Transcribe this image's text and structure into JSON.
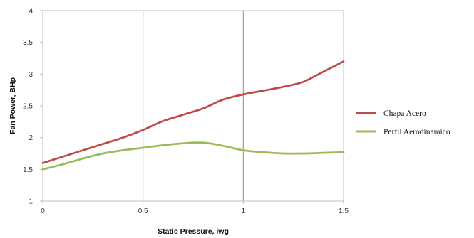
{
  "chart_data": {
    "type": "line",
    "xlabel": "Static Pressure, iwg",
    "ylabel": "Fan Power, BHp",
    "xlim": [
      0,
      1.5
    ],
    "ylim": [
      1,
      4
    ],
    "x_ticks": [
      "0",
      "0.5",
      "1",
      "1.5"
    ],
    "y_ticks": [
      "1",
      "1.5",
      "2",
      "2.5",
      "3",
      "3.5",
      "4"
    ],
    "grid": "vertical",
    "legend_position": "right",
    "series": [
      {
        "name": "Chapa Acero",
        "color": "#be4b48",
        "points": [
          [
            0,
            1.6
          ],
          [
            0.1,
            1.7
          ],
          [
            0.2,
            1.8
          ],
          [
            0.3,
            1.9
          ],
          [
            0.4,
            2.0
          ],
          [
            0.5,
            2.12
          ],
          [
            0.6,
            2.26
          ],
          [
            0.7,
            2.36
          ],
          [
            0.8,
            2.46
          ],
          [
            0.9,
            2.6
          ],
          [
            1.0,
            2.68
          ],
          [
            1.1,
            2.74
          ],
          [
            1.2,
            2.8
          ],
          [
            1.3,
            2.88
          ],
          [
            1.4,
            3.04
          ],
          [
            1.5,
            3.2
          ]
        ]
      },
      {
        "name": "Perfil Aerodinamico",
        "color": "#9bbb59",
        "points": [
          [
            0,
            1.5
          ],
          [
            0.1,
            1.58
          ],
          [
            0.2,
            1.67
          ],
          [
            0.3,
            1.75
          ],
          [
            0.4,
            1.8
          ],
          [
            0.5,
            1.84
          ],
          [
            0.6,
            1.88
          ],
          [
            0.7,
            1.91
          ],
          [
            0.8,
            1.92
          ],
          [
            0.9,
            1.87
          ],
          [
            1.0,
            1.8
          ],
          [
            1.1,
            1.77
          ],
          [
            1.2,
            1.75
          ],
          [
            1.3,
            1.75
          ],
          [
            1.4,
            1.76
          ],
          [
            1.5,
            1.77
          ]
        ]
      }
    ]
  }
}
